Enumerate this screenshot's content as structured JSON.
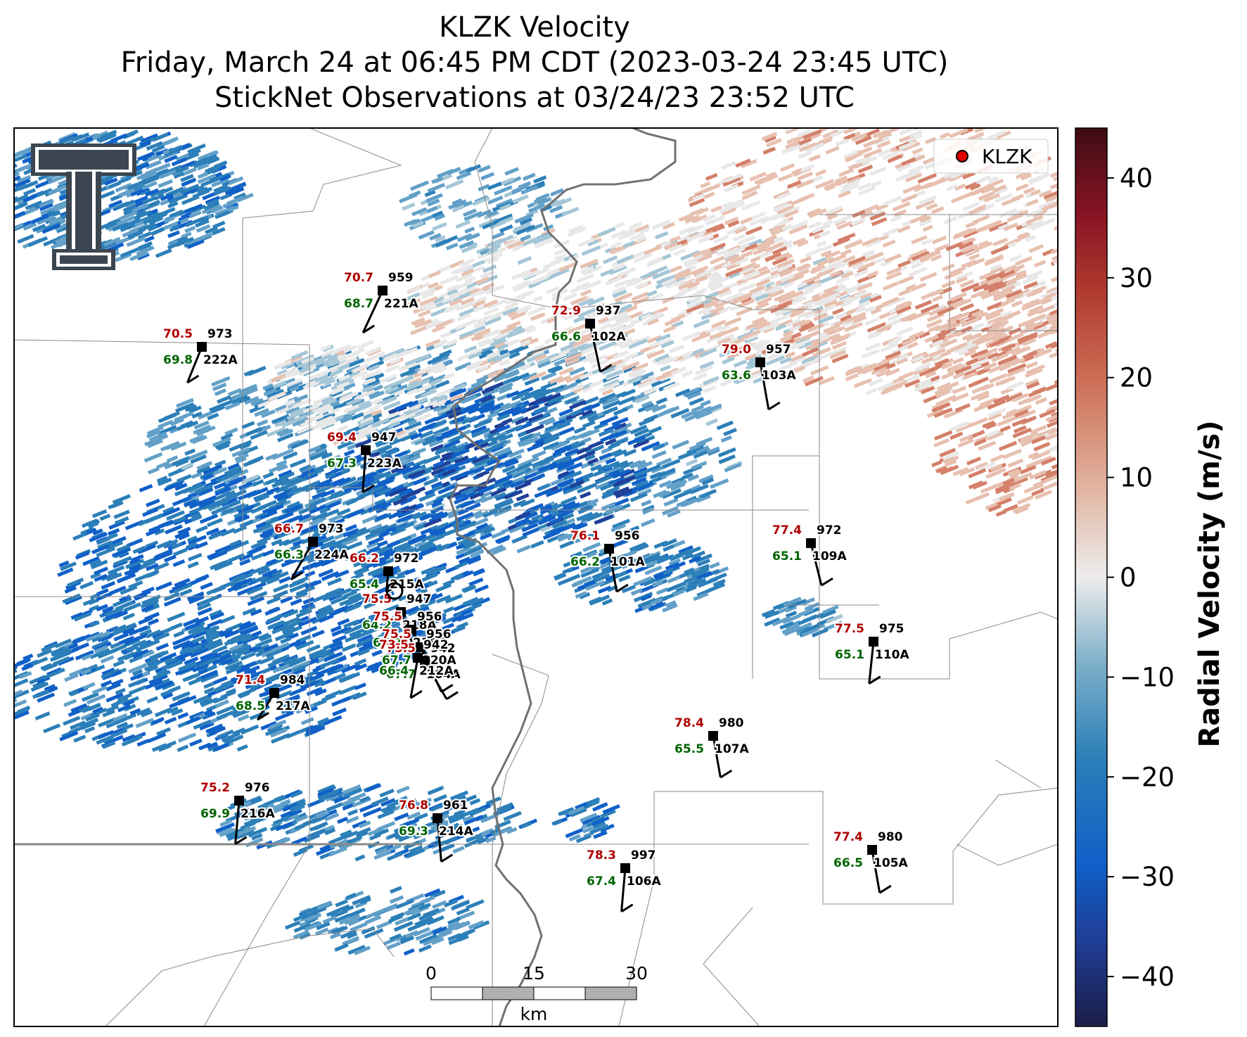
{
  "title": {
    "line1": "KLZK Velocity",
    "line2": "Friday, March 24 at 06:45 PM CDT (2023-03-24 23:45 UTC)",
    "line3": "StickNet Observations at 03/24/23 23:52 UTC"
  },
  "legend": {
    "label": "KLZK"
  },
  "colorbar": {
    "label": "Radial Velocity (m/s)",
    "ticks": [
      "40",
      "30",
      "20",
      "10",
      "0",
      "−10",
      "−20",
      "−30",
      "−40"
    ],
    "vmin": -45,
    "vmax": 45,
    "colors": [
      "#1b1d4a",
      "#1f3f98",
      "#1060c8",
      "#2c7fb8",
      "#62a0c8",
      "#a4c6d6",
      "#e8e8e8",
      "#e7c0b0",
      "#d4806a",
      "#b84032",
      "#8c1424",
      "#4a0d16"
    ]
  },
  "scalebar": {
    "labels": [
      "0",
      "15",
      "30"
    ],
    "unit": "km"
  },
  "logo": {
    "name": "texas-tech-double-t-logo"
  },
  "stations": [
    {
      "id": "221A",
      "temp": "70.7",
      "dew": "68.7",
      "pres": "959"
    },
    {
      "id": "222A",
      "temp": "70.5",
      "dew": "69.8",
      "pres": "973"
    },
    {
      "id": "102A",
      "temp": "72.9",
      "dew": "66.6",
      "pres": "937"
    },
    {
      "id": "103A",
      "temp": "79.0",
      "dew": "63.6",
      "pres": "957"
    },
    {
      "id": "223A",
      "temp": "69.4",
      "dew": "67.3",
      "pres": "947"
    },
    {
      "id": "224A",
      "temp": "66.7",
      "dew": "66.3",
      "pres": "973"
    },
    {
      "id": "215A",
      "temp": "66.2",
      "dew": "65.4",
      "pres": "972"
    },
    {
      "id": "101A",
      "temp": "76.1",
      "dew": "66.2",
      "pres": "956"
    },
    {
      "id": "109A",
      "temp": "77.4",
      "dew": "65.1",
      "pres": "972"
    },
    {
      "id": "218A",
      "temp": "75.5",
      "dew": "64.2",
      "pres": "947"
    },
    {
      "id": "219A",
      "temp": "75.5",
      "dew": "67.7",
      "pres": "956"
    },
    {
      "id": "220A",
      "temp": "75.5",
      "dew": "67.7",
      "pres": "956"
    },
    {
      "id": "110A",
      "temp": "77.5",
      "dew": "65.1",
      "pres": "975"
    },
    {
      "id": "217A",
      "temp": "71.4",
      "dew": "68.5",
      "pres": "984"
    },
    {
      "id": "107A",
      "temp": "78.4",
      "dew": "65.5",
      "pres": "980"
    },
    {
      "id": "216A",
      "temp": "75.2",
      "dew": "69.9",
      "pres": "976"
    },
    {
      "id": "214A",
      "temp": "76.8",
      "dew": "69.3",
      "pres": "961"
    },
    {
      "id": "106A",
      "temp": "78.3",
      "dew": "67.4",
      "pres": "997"
    },
    {
      "id": "105A",
      "temp": "77.4",
      "dew": "66.5",
      "pres": "980"
    },
    {
      "id": "104A",
      "temp": "73.5",
      "dew": "67.7",
      "pres": "942"
    },
    {
      "id": "212A",
      "temp": "73.5",
      "dew": "66.4",
      "pres": "942"
    }
  ]
}
